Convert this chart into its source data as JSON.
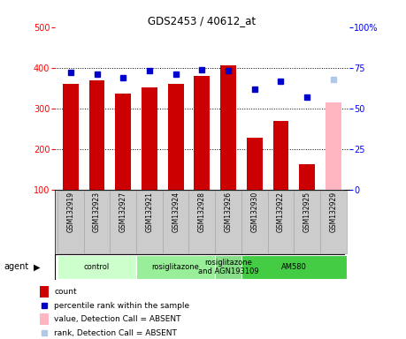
{
  "title": "GDS2453 / 40612_at",
  "samples": [
    "GSM132919",
    "GSM132923",
    "GSM132927",
    "GSM132921",
    "GSM132924",
    "GSM132928",
    "GSM132926",
    "GSM132930",
    "GSM132922",
    "GSM132925",
    "GSM132929"
  ],
  "bar_values": [
    360,
    370,
    337,
    351,
    360,
    380,
    407,
    229,
    270,
    163,
    315
  ],
  "bar_colors": [
    "#cc0000",
    "#cc0000",
    "#cc0000",
    "#cc0000",
    "#cc0000",
    "#cc0000",
    "#cc0000",
    "#cc0000",
    "#cc0000",
    "#cc0000",
    "#ffb6c1"
  ],
  "rank_values": [
    72,
    71,
    69,
    73,
    71,
    74,
    73,
    62,
    67,
    57,
    68
  ],
  "rank_colors": [
    "#0000cc",
    "#0000cc",
    "#0000cc",
    "#0000cc",
    "#0000cc",
    "#0000cc",
    "#0000cc",
    "#0000cc",
    "#0000cc",
    "#0000cc",
    "#b0c8e8"
  ],
  "ylim_left": [
    100,
    500
  ],
  "ylim_right": [
    0,
    100
  ],
  "yticks_left": [
    100,
    200,
    300,
    400,
    500
  ],
  "yticks_right": [
    0,
    25,
    50,
    75,
    100
  ],
  "yticklabels_right": [
    "0",
    "25",
    "50",
    "75",
    "100%"
  ],
  "agents": [
    {
      "label": "control",
      "start": 0,
      "end": 3,
      "color": "#ccffcc"
    },
    {
      "label": "rosiglitazone",
      "start": 3,
      "end": 6,
      "color": "#99ee99"
    },
    {
      "label": "rosiglitazone\nand AGN193109",
      "start": 6,
      "end": 7,
      "color": "#88dd88"
    },
    {
      "label": "AM580",
      "start": 7,
      "end": 11,
      "color": "#44cc44"
    }
  ],
  "legend_items": [
    {
      "label": "count",
      "color": "#cc0000",
      "type": "bar"
    },
    {
      "label": "percentile rank within the sample",
      "color": "#0000cc",
      "type": "square"
    },
    {
      "label": "value, Detection Call = ABSENT",
      "color": "#ffb6c1",
      "type": "bar"
    },
    {
      "label": "rank, Detection Call = ABSENT",
      "color": "#b0c8e8",
      "type": "square"
    }
  ],
  "agent_label": "agent",
  "background_color": "#ffffff",
  "grid_values": [
    200,
    300,
    400
  ],
  "xtick_box_color": "#cccccc",
  "xtick_border_color": "#aaaaaa"
}
